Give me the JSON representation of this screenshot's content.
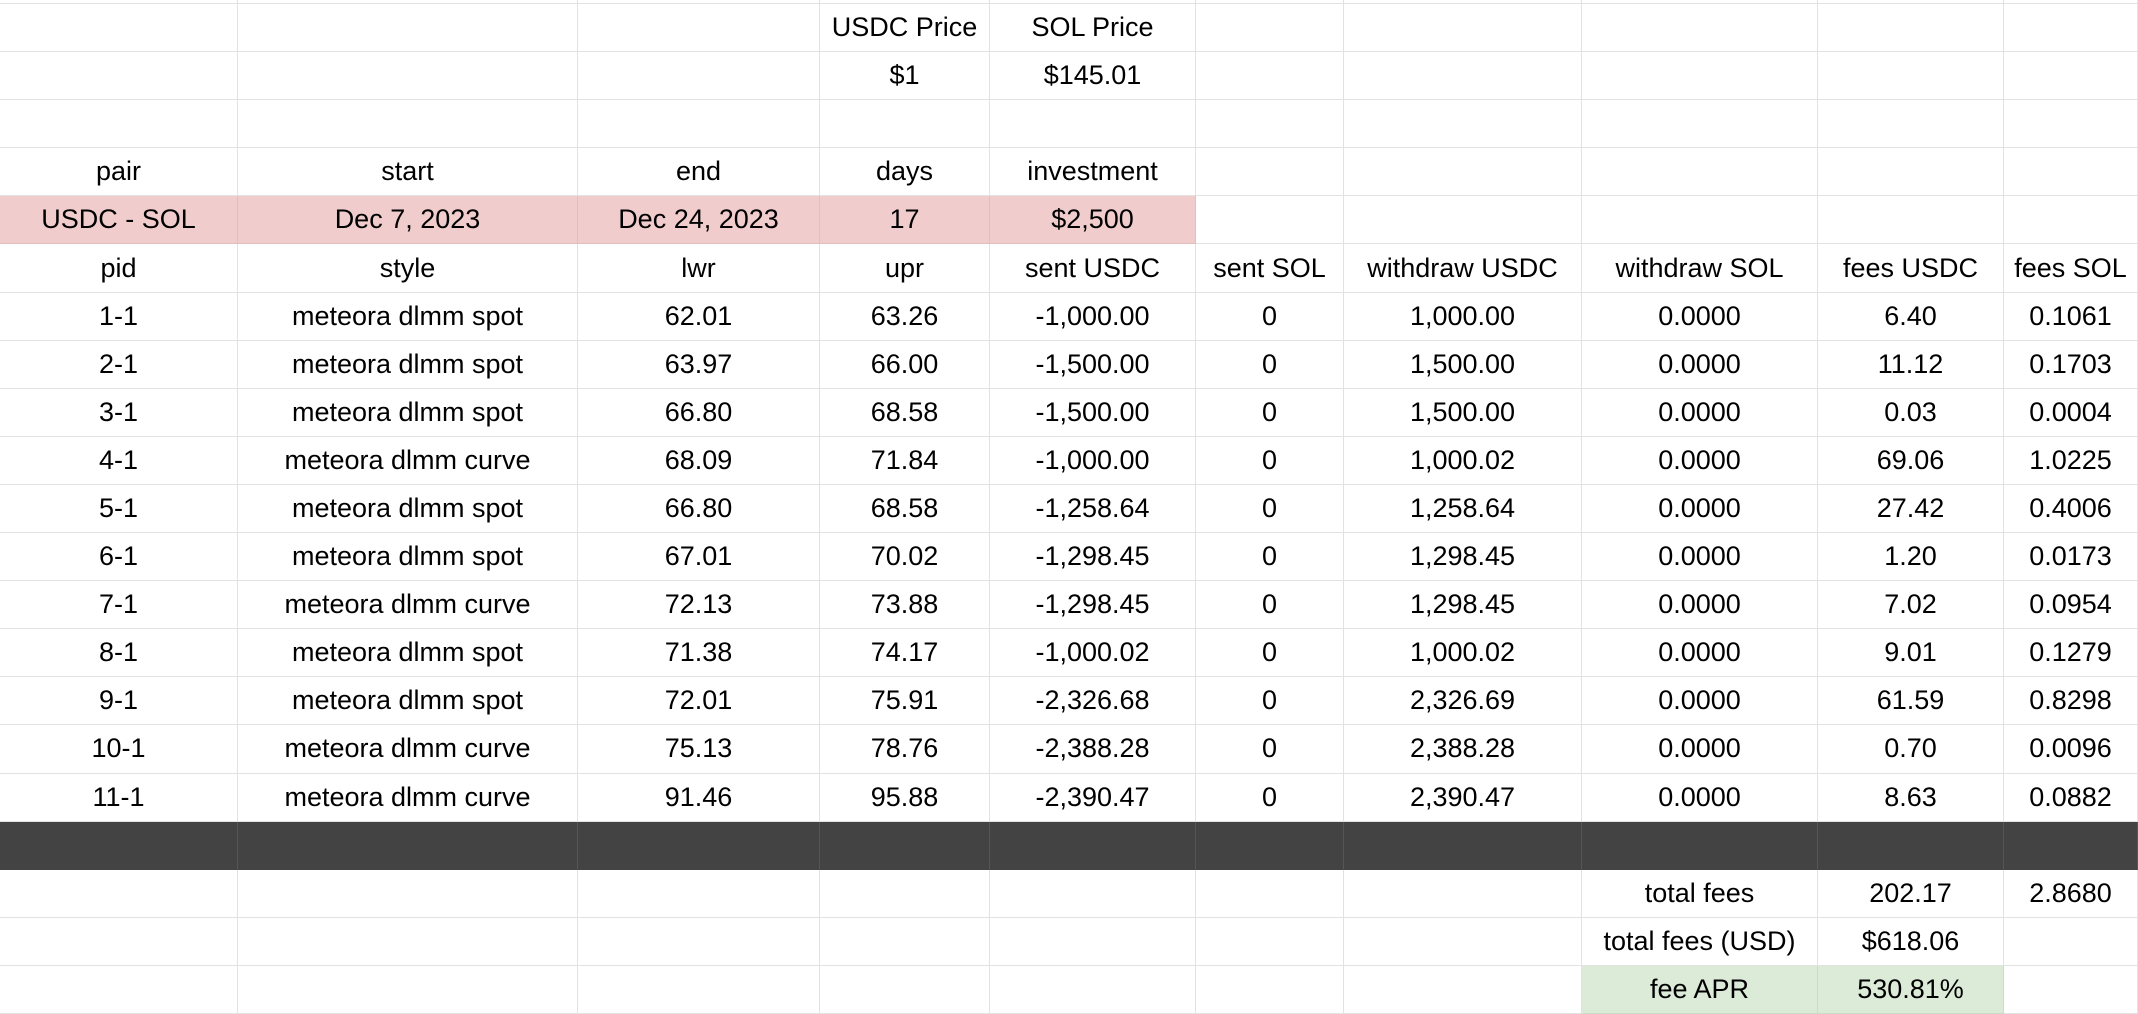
{
  "prices": {
    "usdc_label": "USDC Price",
    "sol_label": "SOL Price",
    "usdc_value": "$1",
    "sol_value": "$145.01"
  },
  "summary": {
    "headers": [
      "pair",
      "start",
      "end",
      "days",
      "investment"
    ],
    "row": {
      "pair": "USDC - SOL",
      "start": "Dec 7, 2023",
      "end": "Dec 24, 2023",
      "days": "17",
      "investment": "$2,500"
    }
  },
  "positions": {
    "headers": [
      "pid",
      "style",
      "lwr",
      "upr",
      "sent USDC",
      "sent SOL",
      "withdraw USDC",
      "withdraw SOL",
      "fees USDC",
      "fees SOL"
    ],
    "rows": [
      {
        "pid": "1-1",
        "style": "meteora dlmm spot",
        "lwr": "62.01",
        "upr": "63.26",
        "sent_usdc": "-1,000.00",
        "sent_sol": "0",
        "withdraw_usdc": "1,000.00",
        "withdraw_sol": "0.0000",
        "fees_usdc": "6.40",
        "fees_sol": "0.1061"
      },
      {
        "pid": "2-1",
        "style": "meteora dlmm spot",
        "lwr": "63.97",
        "upr": "66.00",
        "sent_usdc": "-1,500.00",
        "sent_sol": "0",
        "withdraw_usdc": "1,500.00",
        "withdraw_sol": "0.0000",
        "fees_usdc": "11.12",
        "fees_sol": "0.1703"
      },
      {
        "pid": "3-1",
        "style": "meteora dlmm spot",
        "lwr": "66.80",
        "upr": "68.58",
        "sent_usdc": "-1,500.00",
        "sent_sol": "0",
        "withdraw_usdc": "1,500.00",
        "withdraw_sol": "0.0000",
        "fees_usdc": "0.03",
        "fees_sol": "0.0004"
      },
      {
        "pid": "4-1",
        "style": "meteora dlmm curve",
        "lwr": "68.09",
        "upr": "71.84",
        "sent_usdc": "-1,000.00",
        "sent_sol": "0",
        "withdraw_usdc": "1,000.02",
        "withdraw_sol": "0.0000",
        "fees_usdc": "69.06",
        "fees_sol": "1.0225"
      },
      {
        "pid": "5-1",
        "style": "meteora dlmm spot",
        "lwr": "66.80",
        "upr": "68.58",
        "sent_usdc": "-1,258.64",
        "sent_sol": "0",
        "withdraw_usdc": "1,258.64",
        "withdraw_sol": "0.0000",
        "fees_usdc": "27.42",
        "fees_sol": "0.4006"
      },
      {
        "pid": "6-1",
        "style": "meteora dlmm spot",
        "lwr": "67.01",
        "upr": "70.02",
        "sent_usdc": "-1,298.45",
        "sent_sol": "0",
        "withdraw_usdc": "1,298.45",
        "withdraw_sol": "0.0000",
        "fees_usdc": "1.20",
        "fees_sol": "0.0173"
      },
      {
        "pid": "7-1",
        "style": "meteora dlmm curve",
        "lwr": "72.13",
        "upr": "73.88",
        "sent_usdc": "-1,298.45",
        "sent_sol": "0",
        "withdraw_usdc": "1,298.45",
        "withdraw_sol": "0.0000",
        "fees_usdc": "7.02",
        "fees_sol": "0.0954"
      },
      {
        "pid": "8-1",
        "style": "meteora dlmm spot",
        "lwr": "71.38",
        "upr": "74.17",
        "sent_usdc": "-1,000.02",
        "sent_sol": "0",
        "withdraw_usdc": "1,000.02",
        "withdraw_sol": "0.0000",
        "fees_usdc": "9.01",
        "fees_sol": "0.1279"
      },
      {
        "pid": "9-1",
        "style": "meteora dlmm spot",
        "lwr": "72.01",
        "upr": "75.91",
        "sent_usdc": "-2,326.68",
        "sent_sol": "0",
        "withdraw_usdc": "2,326.69",
        "withdraw_sol": "0.0000",
        "fees_usdc": "61.59",
        "fees_sol": "0.8298"
      },
      {
        "pid": "10-1",
        "style": "meteora dlmm curve",
        "lwr": "75.13",
        "upr": "78.76",
        "sent_usdc": "-2,388.28",
        "sent_sol": "0",
        "withdraw_usdc": "2,388.28",
        "withdraw_sol": "0.0000",
        "fees_usdc": "0.70",
        "fees_sol": "0.0096"
      },
      {
        "pid": "11-1",
        "style": "meteora dlmm curve",
        "lwr": "91.46",
        "upr": "95.88",
        "sent_usdc": "-2,390.47",
        "sent_sol": "0",
        "withdraw_usdc": "2,390.47",
        "withdraw_sol": "0.0000",
        "fees_usdc": "8.63",
        "fees_sol": "0.0882"
      }
    ]
  },
  "totals": {
    "total_fees_label": "total fees",
    "total_fees_usdc": "202.17",
    "total_fees_sol": "2.8680",
    "total_fees_usd_label": "total fees (USD)",
    "total_fees_usd": "$618.06",
    "fee_apr_label": "fee APR",
    "fee_apr": "530.81%"
  },
  "colors": {
    "highlight_pink": "#f0cccc",
    "highlight_green": "#dcead8",
    "separator_dark": "#434343",
    "gridline": "#e2e2e2"
  }
}
